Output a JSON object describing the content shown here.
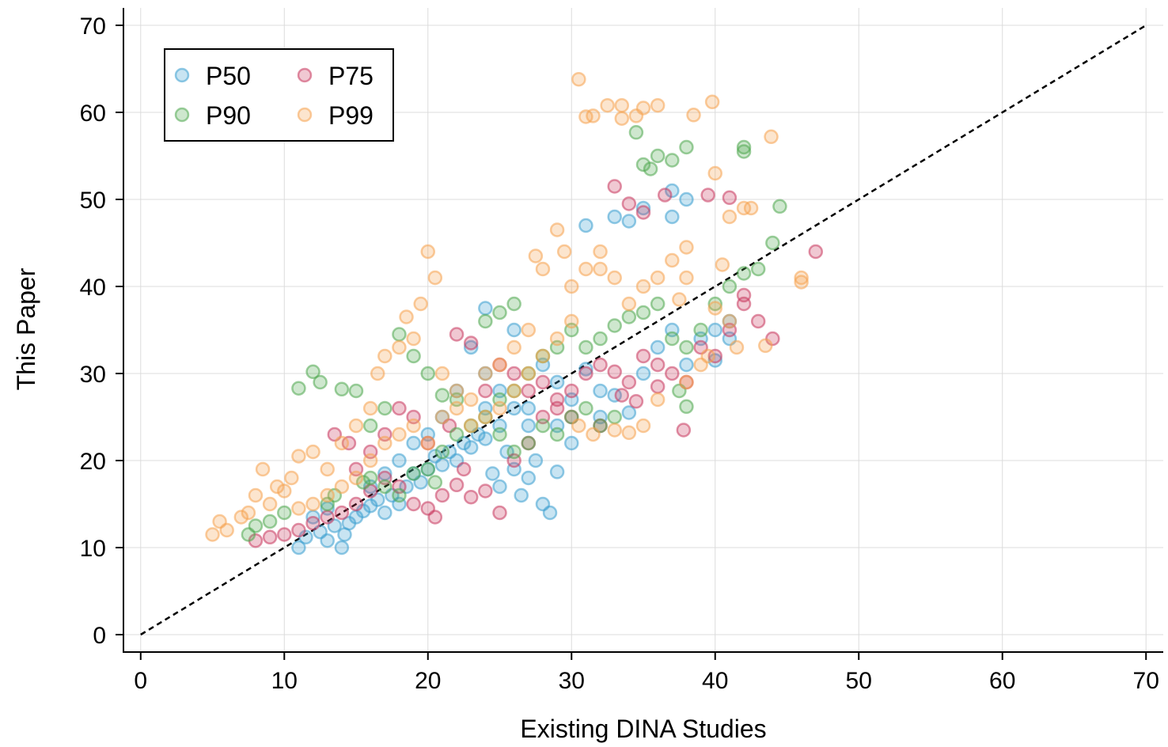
{
  "chart_data": {
    "type": "scatter",
    "xlabel": "Existing DINA Studies",
    "ylabel": "This Paper",
    "xlim": [
      -1.2,
      71.2
    ],
    "ylim": [
      -2,
      72
    ],
    "xticks": [
      "0",
      "10",
      "20",
      "30",
      "40",
      "50",
      "60",
      "70"
    ],
    "yticks": [
      "0",
      "10",
      "20",
      "30",
      "40",
      "50",
      "60",
      "70"
    ],
    "grid": true,
    "legend_position": "top-left",
    "reference_line": {
      "style": "dashed",
      "from": [
        0,
        0
      ],
      "to": [
        70,
        70
      ]
    },
    "series": [
      {
        "name": "P50",
        "color": "#3a9fcf",
        "points": [
          [
            11,
            10
          ],
          [
            11.5,
            11.2
          ],
          [
            12.5,
            11.8
          ],
          [
            13,
            10.8
          ],
          [
            13.5,
            12.5
          ],
          [
            14,
            10
          ],
          [
            14.2,
            11.5
          ],
          [
            14.5,
            12.8
          ],
          [
            15,
            13.5
          ],
          [
            15.5,
            14.2
          ],
          [
            16,
            14.8
          ],
          [
            16.5,
            15.5
          ],
          [
            17,
            14
          ],
          [
            17.5,
            16
          ],
          [
            18,
            15
          ],
          [
            18.5,
            17
          ],
          [
            19,
            18.5
          ],
          [
            19.5,
            17.5
          ],
          [
            20,
            19
          ],
          [
            20.5,
            20.5
          ],
          [
            21,
            19.5
          ],
          [
            21.5,
            21
          ],
          [
            22,
            20
          ],
          [
            22.5,
            22
          ],
          [
            23,
            21.5
          ],
          [
            23.5,
            23
          ],
          [
            24,
            22.5
          ],
          [
            24.5,
            18.5
          ],
          [
            25,
            17
          ],
          [
            25.5,
            21
          ],
          [
            26,
            19
          ],
          [
            26.5,
            16
          ],
          [
            27,
            18
          ],
          [
            27.5,
            20
          ],
          [
            28,
            15
          ],
          [
            28.5,
            14
          ],
          [
            29,
            18.7
          ],
          [
            27,
            24
          ],
          [
            26,
            26
          ],
          [
            25,
            28
          ],
          [
            24,
            30
          ],
          [
            23,
            33
          ],
          [
            24,
            37.5
          ],
          [
            26,
            35
          ],
          [
            28,
            31
          ],
          [
            29,
            29
          ],
          [
            30,
            27
          ],
          [
            31,
            30.5
          ],
          [
            32,
            28
          ],
          [
            33,
            27.5
          ],
          [
            34,
            25.5
          ],
          [
            35,
            30
          ],
          [
            36,
            33
          ],
          [
            37,
            35
          ],
          [
            38,
            31
          ],
          [
            39,
            34
          ],
          [
            40,
            31.5
          ],
          [
            41,
            36
          ],
          [
            33,
            48
          ],
          [
            34,
            47.5
          ],
          [
            35,
            49
          ],
          [
            37,
            51
          ],
          [
            38,
            50
          ],
          [
            31,
            47
          ],
          [
            37,
            48
          ],
          [
            22,
            28
          ],
          [
            21,
            25
          ],
          [
            20,
            23
          ],
          [
            19,
            22
          ],
          [
            18,
            20
          ],
          [
            17,
            18.5
          ],
          [
            16,
            17
          ],
          [
            13,
            14.5
          ],
          [
            12,
            13.5
          ],
          [
            24,
            26
          ],
          [
            25,
            24
          ],
          [
            27,
            26
          ],
          [
            29,
            24
          ],
          [
            30,
            22
          ],
          [
            32,
            25
          ],
          [
            40,
            35
          ],
          [
            41,
            34
          ]
        ]
      },
      {
        "name": "P75",
        "color": "#c8385e",
        "points": [
          [
            8,
            10.8
          ],
          [
            9,
            11.2
          ],
          [
            10,
            11.5
          ],
          [
            11,
            12
          ],
          [
            12,
            12.8
          ],
          [
            13,
            13.5
          ],
          [
            13.5,
            23
          ],
          [
            14,
            14
          ],
          [
            14.5,
            22
          ],
          [
            15,
            15
          ],
          [
            16,
            16.5
          ],
          [
            17,
            18
          ],
          [
            18,
            17
          ],
          [
            19,
            15
          ],
          [
            20,
            14.5
          ],
          [
            20.5,
            13.5
          ],
          [
            21,
            16
          ],
          [
            22,
            17.2
          ],
          [
            22.5,
            19
          ],
          [
            23,
            15.8
          ],
          [
            24,
            16.5
          ],
          [
            25,
            14
          ],
          [
            26,
            20
          ],
          [
            27,
            22
          ],
          [
            28,
            25
          ],
          [
            29,
            27
          ],
          [
            30,
            28
          ],
          [
            31,
            30
          ],
          [
            32,
            31
          ],
          [
            33,
            30.2
          ],
          [
            34,
            29
          ],
          [
            35,
            32
          ],
          [
            36,
            31
          ],
          [
            37,
            30
          ],
          [
            37.8,
            23.5
          ],
          [
            38,
            29
          ],
          [
            39,
            33
          ],
          [
            40,
            32
          ],
          [
            41,
            35
          ],
          [
            42,
            38
          ],
          [
            43,
            36
          ],
          [
            44,
            34
          ],
          [
            47,
            44
          ],
          [
            33,
            51.5
          ],
          [
            34,
            49.5
          ],
          [
            35,
            48.5
          ],
          [
            36.5,
            50.5
          ],
          [
            39.5,
            50.5
          ],
          [
            41,
            50.2
          ],
          [
            42,
            39
          ],
          [
            22,
            34.5
          ],
          [
            23,
            33.5
          ],
          [
            25,
            31
          ],
          [
            26,
            30
          ],
          [
            27,
            28
          ],
          [
            28,
            29
          ],
          [
            29,
            26
          ],
          [
            30,
            25
          ],
          [
            32,
            24
          ],
          [
            33.5,
            27.5
          ],
          [
            34.5,
            26.8
          ],
          [
            36,
            28.5
          ],
          [
            21.5,
            24
          ],
          [
            20,
            22
          ],
          [
            19,
            25
          ],
          [
            18,
            26
          ],
          [
            17,
            23
          ],
          [
            16,
            21
          ],
          [
            15,
            19
          ],
          [
            24,
            28
          ]
        ]
      },
      {
        "name": "P90",
        "color": "#4ea84e",
        "points": [
          [
            7.5,
            11.5
          ],
          [
            8,
            12.5
          ],
          [
            9,
            13
          ],
          [
            10,
            14
          ],
          [
            11,
            28.3
          ],
          [
            12,
            30.2
          ],
          [
            12.5,
            29
          ],
          [
            13,
            15
          ],
          [
            13.5,
            16
          ],
          [
            14,
            28.2
          ],
          [
            15,
            28
          ],
          [
            15.5,
            17.5
          ],
          [
            16,
            18
          ],
          [
            17,
            17
          ],
          [
            18,
            16
          ],
          [
            19,
            18.5
          ],
          [
            20,
            19
          ],
          [
            20.5,
            17.5
          ],
          [
            21,
            21
          ],
          [
            22,
            23
          ],
          [
            23,
            24
          ],
          [
            24,
            25
          ],
          [
            25,
            27
          ],
          [
            26,
            28
          ],
          [
            27,
            30
          ],
          [
            28,
            32
          ],
          [
            29,
            33
          ],
          [
            30,
            35
          ],
          [
            31,
            33
          ],
          [
            32,
            34
          ],
          [
            33,
            35.5
          ],
          [
            34,
            36.5
          ],
          [
            35,
            37
          ],
          [
            36,
            38
          ],
          [
            37,
            34
          ],
          [
            38,
            33
          ],
          [
            39,
            35
          ],
          [
            40,
            38
          ],
          [
            41,
            40
          ],
          [
            42,
            41.5
          ],
          [
            43,
            42
          ],
          [
            44,
            45
          ],
          [
            44.5,
            49.2
          ],
          [
            42,
            55.5
          ],
          [
            42,
            56
          ],
          [
            38,
            56
          ],
          [
            37,
            54.5
          ],
          [
            36,
            55
          ],
          [
            35,
            54
          ],
          [
            34.5,
            57.7
          ],
          [
            35.5,
            53.5
          ],
          [
            30,
            25
          ],
          [
            31,
            26
          ],
          [
            32,
            24
          ],
          [
            33,
            25
          ],
          [
            29,
            23
          ],
          [
            28,
            24
          ],
          [
            27,
            22
          ],
          [
            26,
            21
          ],
          [
            25,
            23
          ],
          [
            18,
            34.5
          ],
          [
            19,
            32
          ],
          [
            20,
            30
          ],
          [
            17,
            26
          ],
          [
            16,
            24
          ],
          [
            22,
            27
          ],
          [
            21,
            27.5
          ],
          [
            24,
            36
          ],
          [
            25,
            37
          ],
          [
            26,
            38
          ],
          [
            38,
            26.2
          ],
          [
            37.5,
            28
          ]
        ]
      },
      {
        "name": "P99",
        "color": "#f5a24e",
        "points": [
          [
            5,
            11.5
          ],
          [
            5.5,
            13
          ],
          [
            6,
            12
          ],
          [
            7,
            13.5
          ],
          [
            7.5,
            14
          ],
          [
            8,
            16
          ],
          [
            8.5,
            19
          ],
          [
            9,
            15
          ],
          [
            9.5,
            17
          ],
          [
            10,
            16.5
          ],
          [
            10.5,
            18
          ],
          [
            11,
            20.5
          ],
          [
            12,
            21
          ],
          [
            13,
            19
          ],
          [
            14,
            22
          ],
          [
            15,
            24
          ],
          [
            16,
            26
          ],
          [
            16.5,
            30
          ],
          [
            17,
            32
          ],
          [
            18,
            33
          ],
          [
            18.5,
            36.5
          ],
          [
            19,
            34
          ],
          [
            19.5,
            38
          ],
          [
            20,
            44
          ],
          [
            20.5,
            41
          ],
          [
            21,
            30
          ],
          [
            22,
            28
          ],
          [
            23,
            27
          ],
          [
            24,
            30
          ],
          [
            25,
            31
          ],
          [
            26,
            33
          ],
          [
            27,
            35
          ],
          [
            27.5,
            43.5
          ],
          [
            28,
            42
          ],
          [
            29,
            46.5
          ],
          [
            29.5,
            44
          ],
          [
            30,
            40
          ],
          [
            30.5,
            63.8
          ],
          [
            31,
            59.5
          ],
          [
            31.5,
            59.6
          ],
          [
            32,
            42
          ],
          [
            32.5,
            60.8
          ],
          [
            33.5,
            60.8
          ],
          [
            33.5,
            59.3
          ],
          [
            34.5,
            59.6
          ],
          [
            35,
            60.5
          ],
          [
            36,
            60.8
          ],
          [
            38.5,
            59.7
          ],
          [
            39.8,
            61.2
          ],
          [
            40,
            53
          ],
          [
            38,
            44.5
          ],
          [
            37,
            43
          ],
          [
            36,
            41
          ],
          [
            35,
            40
          ],
          [
            34,
            38
          ],
          [
            33,
            41
          ],
          [
            32,
            44
          ],
          [
            31,
            42
          ],
          [
            30,
            36
          ],
          [
            29,
            34
          ],
          [
            28,
            32
          ],
          [
            27,
            30
          ],
          [
            26,
            28
          ],
          [
            25,
            26
          ],
          [
            24,
            25
          ],
          [
            23,
            24
          ],
          [
            22,
            26
          ],
          [
            21,
            25
          ],
          [
            20,
            22
          ],
          [
            19,
            24
          ],
          [
            18,
            23
          ],
          [
            17,
            22
          ],
          [
            16,
            20
          ],
          [
            15,
            18
          ],
          [
            14,
            17
          ],
          [
            13,
            16
          ],
          [
            12,
            15
          ],
          [
            11,
            14.5
          ],
          [
            41,
            48
          ],
          [
            42,
            49
          ],
          [
            42.5,
            49
          ],
          [
            43.9,
            57.2
          ],
          [
            43.5,
            33.2
          ],
          [
            46,
            40.5
          ],
          [
            46,
            41
          ],
          [
            40,
            37.5
          ],
          [
            41,
            36
          ],
          [
            41.5,
            33
          ],
          [
            39,
            31
          ],
          [
            38,
            29
          ],
          [
            36,
            27
          ],
          [
            35,
            24
          ],
          [
            34,
            23.2
          ],
          [
            33,
            23.5
          ],
          [
            31.5,
            23
          ],
          [
            30.5,
            24
          ],
          [
            39.5,
            32
          ],
          [
            37.5,
            38.5
          ],
          [
            38,
            41
          ],
          [
            40.5,
            42.5
          ]
        ]
      }
    ]
  }
}
